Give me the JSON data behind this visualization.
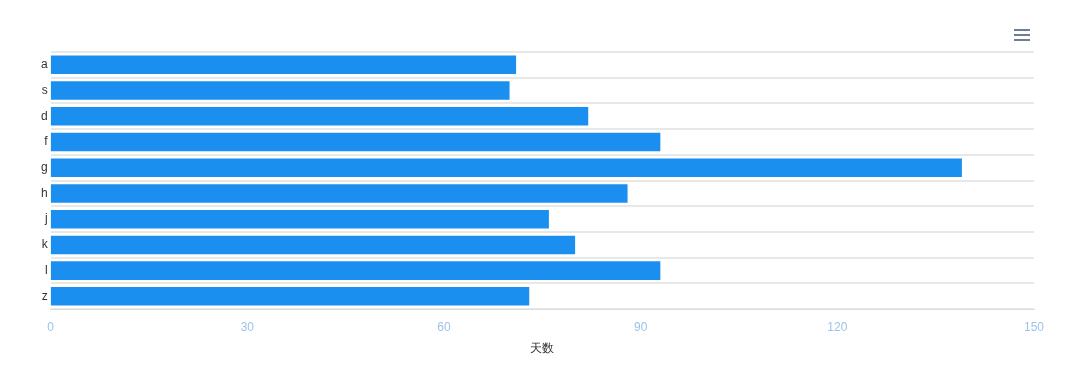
{
  "chart_data": {
    "type": "bar",
    "orientation": "horizontal",
    "categories": [
      "a",
      "s",
      "d",
      "f",
      "g",
      "h",
      "j",
      "k",
      "l",
      "z"
    ],
    "values": [
      71,
      70,
      82,
      93,
      139,
      88,
      76,
      80,
      93,
      73
    ],
    "color": "#1a8ff0",
    "xlabel": "天数",
    "xlim": [
      0,
      150
    ],
    "xticks": [
      0,
      30,
      60,
      90,
      120,
      150
    ],
    "grid": "y"
  }
}
